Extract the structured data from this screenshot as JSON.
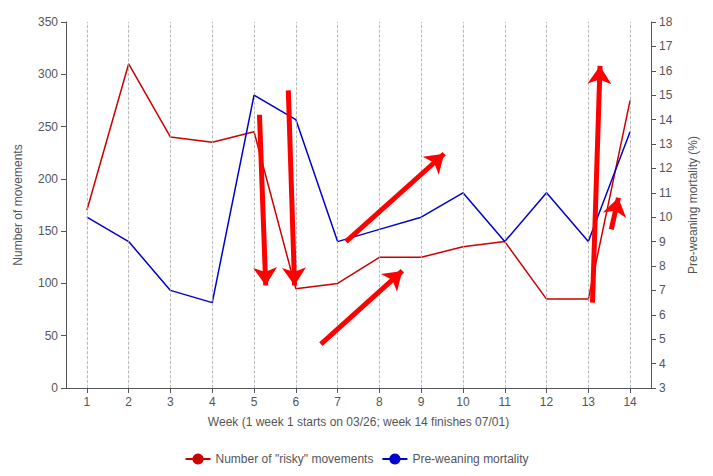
{
  "chart_data": {
    "type": "line",
    "x": [
      1,
      2,
      3,
      4,
      5,
      6,
      7,
      8,
      9,
      10,
      11,
      12,
      13,
      14
    ],
    "xlim": [
      0.5,
      14.5
    ],
    "xticks": [
      1,
      2,
      3,
      4,
      5,
      6,
      7,
      8,
      9,
      10,
      11,
      12,
      13,
      14
    ],
    "ylim": [
      0,
      350
    ],
    "yticks": [
      0,
      50,
      100,
      150,
      200,
      250,
      300,
      350
    ],
    "y2lim": [
      3,
      18
    ],
    "y2ticks": [
      3,
      4,
      5,
      6,
      7,
      8,
      9,
      10,
      11,
      12,
      13,
      14,
      15,
      16,
      17,
      18
    ],
    "xlabel": "Week (1 week 1 starts on 03/26; week 14 finishes 07/01)",
    "ylabel": "Number of movements",
    "y2label": "Pre-weaning mortality (%)",
    "grid": "x",
    "legend": "bottom",
    "series": [
      {
        "name": "Number of \"risky\" movements",
        "color": "#cc0000",
        "values": [
          170,
          310,
          240,
          235,
          245,
          95,
          100,
          125,
          125,
          135,
          140,
          85,
          85,
          275
        ]
      },
      {
        "name": "Pre-weaning mortality",
        "color": "#0000cc",
        "axis": "y2",
        "values": [
          10,
          9,
          7,
          6.5,
          15,
          14,
          9,
          9.5,
          10,
          11,
          9,
          11,
          9,
          13.5
        ]
      }
    ],
    "annotations": [
      {
        "type": "arrow",
        "color": "red",
        "axis": "y2",
        "x0": 5.13,
        "y0": 14.2,
        "x1": 5.28,
        "y1": 7.2
      },
      {
        "type": "arrow",
        "color": "red",
        "axis": "y2",
        "x0": 5.82,
        "y0": 15.2,
        "x1": 5.97,
        "y1": 7.2
      },
      {
        "type": "arrow",
        "color": "red",
        "axis": "y2",
        "x0": 6.6,
        "y0": 4.8,
        "x1": 8.55,
        "y1": 7.8
      },
      {
        "type": "arrow",
        "color": "red",
        "axis": "y2",
        "x0": 7.2,
        "y0": 9.0,
        "x1": 9.55,
        "y1": 12.6
      },
      {
        "type": "arrow",
        "color": "red",
        "axis": "y2",
        "x0": 13.1,
        "y0": 6.5,
        "x1": 13.28,
        "y1": 16.2
      },
      {
        "type": "arrow",
        "color": "red",
        "axis": "y2",
        "x0": 13.55,
        "y0": 9.5,
        "x1": 13.72,
        "y1": 10.8
      }
    ]
  }
}
